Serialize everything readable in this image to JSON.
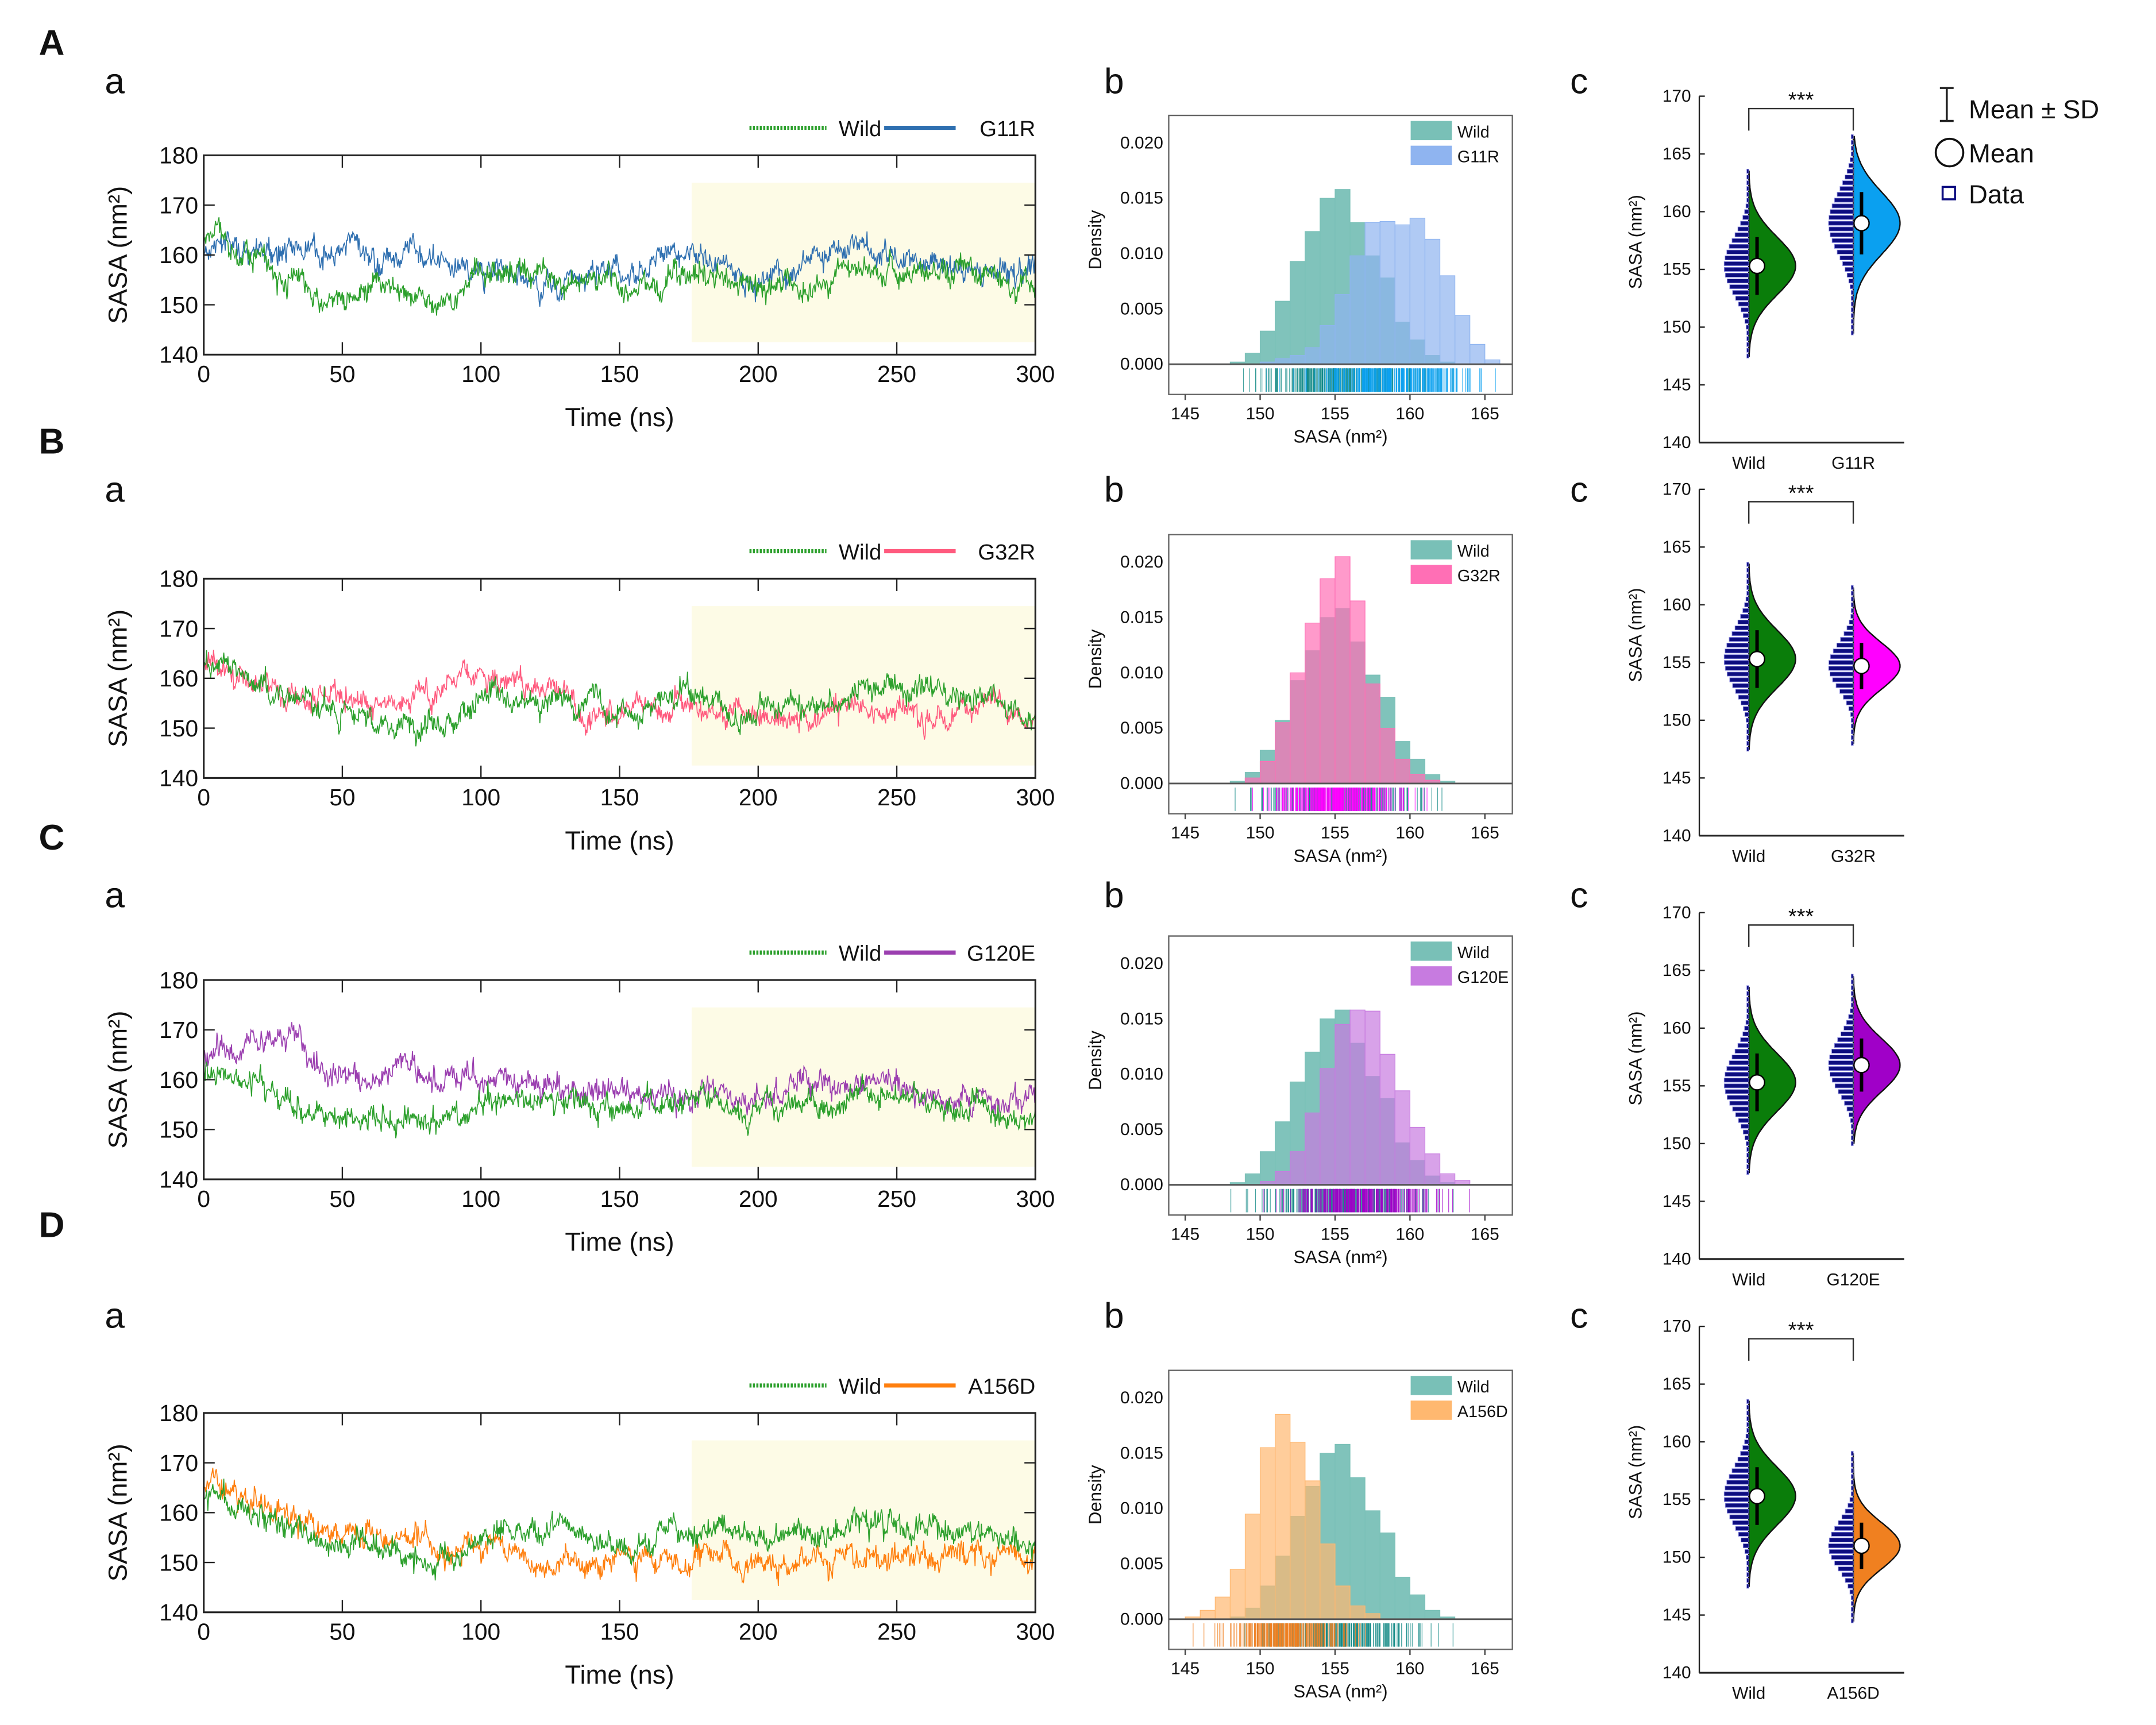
{
  "common": {
    "timeseries": {
      "type": "line",
      "xlabel": "Time (ns)",
      "ylabel": "SASA (nm²)",
      "xlim": [
        0,
        300
      ],
      "ylim": [
        140,
        180
      ],
      "xticks": [
        0,
        50,
        100,
        150,
        200,
        250,
        300
      ],
      "yticks": [
        140,
        150,
        160,
        170,
        180
      ],
      "highlight_region": {
        "x": [
          176,
          300
        ],
        "y": [
          142.5,
          174.5
        ],
        "color": "#fdfbe6"
      },
      "wild_label": "Wild",
      "wild_color": "#2ca02c"
    },
    "histogram": {
      "type": "bar",
      "xlabel": "SASA (nm²)",
      "ylabel": "Density",
      "xlim": [
        144,
        167
      ],
      "ylim": [
        0,
        0.022
      ],
      "xticks": [
        145,
        150,
        155,
        160,
        165
      ],
      "yticks": [
        "0.000",
        "0.005",
        "0.010",
        "0.015",
        "0.020"
      ],
      "wild_label": "Wild",
      "wild_color": "#79c0b7",
      "rug_plot": true
    },
    "violin": {
      "type": "violin",
      "ylabel": "SASA (nm²)",
      "ylim": [
        140,
        170
      ],
      "yticks": [
        140,
        145,
        150,
        155,
        160,
        165,
        170
      ],
      "wild_label": "Wild",
      "wild_color": "#0a7d0a",
      "significance": "***"
    },
    "legend": {
      "sd": "Mean ± SD",
      "mean": "Mean",
      "data": "Data"
    }
  },
  "chart_data": [
    {
      "panel": "A",
      "sub": [
        "a",
        "b",
        "c"
      ],
      "mutant": "G11R",
      "mutant_line_color": "#2e6fb0",
      "mutant_hist_color": "#8fb4f0",
      "mutant_violin_color": "#0aa0f0",
      "timeseries": {
        "wild": [
          [
            0,
            162
          ],
          [
            15,
            161
          ],
          [
            30,
            155
          ],
          [
            45,
            153
          ],
          [
            60,
            154
          ],
          [
            75,
            151
          ],
          [
            90,
            152
          ],
          [
            100,
            157
          ],
          [
            120,
            156
          ],
          [
            140,
            155
          ],
          [
            155,
            152
          ],
          [
            175,
            157
          ],
          [
            200,
            153
          ],
          [
            215,
            155
          ],
          [
            245,
            158
          ],
          [
            270,
            156
          ],
          [
            300,
            153
          ]
        ],
        "mutant": [
          [
            0,
            160
          ],
          [
            20,
            162
          ],
          [
            50,
            160
          ],
          [
            80,
            160
          ],
          [
            100,
            157
          ],
          [
            115,
            155
          ],
          [
            122,
            151
          ],
          [
            130,
            155
          ],
          [
            160,
            158
          ],
          [
            175,
            161
          ],
          [
            195,
            155
          ],
          [
            210,
            156
          ],
          [
            220,
            161
          ],
          [
            260,
            160
          ],
          [
            275,
            156
          ],
          [
            290,
            157
          ],
          [
            300,
            158
          ]
        ]
      },
      "histogram": {
        "bin_width": 1,
        "wild": {
          "148": 0.0002,
          "149": 0.001,
          "150": 0.003,
          "151": 0.0057,
          "152": 0.0093,
          "153": 0.012,
          "154": 0.015,
          "155": 0.0158,
          "156": 0.0128,
          "157": 0.0098,
          "158": 0.0078,
          "159": 0.0038,
          "160": 0.0022,
          "161": 0.0008,
          "162": 0.0002
        },
        "mutant": {
          "150": 0.0002,
          "151": 0.0005,
          "152": 0.0008,
          "153": 0.0015,
          "154": 0.0035,
          "155": 0.0063,
          "156": 0.0098,
          "157": 0.0128,
          "158": 0.0129,
          "159": 0.0126,
          "160": 0.0132,
          "161": 0.0113,
          "162": 0.008,
          "163": 0.0044,
          "164": 0.0018,
          "165": 0.0004
        }
      },
      "violin": {
        "wild": {
          "mean": 155.3,
          "sd": 2.5,
          "min": 147.5,
          "max": 163.5
        },
        "mutant": {
          "mean": 159.0,
          "sd": 2.7,
          "min": 149.5,
          "max": 166.5
        }
      }
    },
    {
      "panel": "B",
      "sub": [
        "a",
        "b",
        "c"
      ],
      "mutant": "G32R",
      "mutant_line_color": "#ff5a7e",
      "mutant_hist_color": "#ff6fb5",
      "mutant_violin_color": "#ff00ff",
      "timeseries": {
        "wild": [
          [
            0,
            162
          ],
          [
            15,
            161
          ],
          [
            30,
            155
          ],
          [
            45,
            153
          ],
          [
            60,
            154
          ],
          [
            75,
            151
          ],
          [
            90,
            152
          ],
          [
            100,
            157
          ],
          [
            120,
            156
          ],
          [
            140,
            155
          ],
          [
            155,
            152
          ],
          [
            175,
            157
          ],
          [
            200,
            153
          ],
          [
            215,
            155
          ],
          [
            245,
            158
          ],
          [
            270,
            156
          ],
          [
            300,
            153
          ]
        ],
        "mutant": [
          [
            0,
            163
          ],
          [
            15,
            162
          ],
          [
            30,
            157
          ],
          [
            60,
            155
          ],
          [
            80,
            157
          ],
          [
            95,
            161
          ],
          [
            110,
            158
          ],
          [
            125,
            160
          ],
          [
            135,
            155
          ],
          [
            150,
            154
          ],
          [
            175,
            155
          ],
          [
            200,
            153
          ],
          [
            300,
            154
          ]
        ]
      },
      "histogram": {
        "bin_width": 1,
        "wild": {
          "148": 0.0002,
          "149": 0.001,
          "150": 0.003,
          "151": 0.0057,
          "152": 0.0093,
          "153": 0.012,
          "154": 0.015,
          "155": 0.0158,
          "156": 0.0128,
          "157": 0.0098,
          "158": 0.0078,
          "159": 0.0038,
          "160": 0.0022,
          "161": 0.0008,
          "162": 0.0002
        },
        "mutant": {
          "149": 0.0005,
          "150": 0.002,
          "151": 0.0055,
          "152": 0.01,
          "153": 0.0145,
          "154": 0.0185,
          "155": 0.0205,
          "156": 0.0165,
          "157": 0.009,
          "158": 0.005,
          "159": 0.0022,
          "160": 0.0008,
          "161": 0.0003
        }
      },
      "violin": {
        "wild": {
          "mean": 155.3,
          "sd": 2.5,
          "min": 147.5,
          "max": 163.5
        },
        "mutant": {
          "mean": 154.7,
          "sd": 2.0,
          "min": 148.0,
          "max": 161.5
        }
      }
    },
    {
      "panel": "C",
      "sub": [
        "a",
        "b",
        "c"
      ],
      "mutant": "G120E",
      "mutant_line_color": "#9b3fb0",
      "mutant_hist_color": "#c77be0",
      "mutant_violin_color": "#a000c8",
      "timeseries": {
        "wild": [
          [
            0,
            162
          ],
          [
            15,
            161
          ],
          [
            30,
            155
          ],
          [
            45,
            153
          ],
          [
            60,
            154
          ],
          [
            75,
            151
          ],
          [
            90,
            152
          ],
          [
            100,
            157
          ],
          [
            120,
            156
          ],
          [
            140,
            155
          ],
          [
            155,
            152
          ],
          [
            175,
            157
          ],
          [
            200,
            153
          ],
          [
            215,
            155
          ],
          [
            245,
            158
          ],
          [
            270,
            156
          ],
          [
            300,
            153
          ]
        ],
        "mutant": [
          [
            0,
            166
          ],
          [
            20,
            168
          ],
          [
            35,
            170
          ],
          [
            40,
            162
          ],
          [
            70,
            161
          ],
          [
            90,
            160
          ],
          [
            100,
            163
          ],
          [
            110,
            160
          ],
          [
            140,
            158
          ],
          [
            175,
            157
          ],
          [
            200,
            156
          ],
          [
            240,
            160
          ],
          [
            270,
            157
          ],
          [
            300,
            155
          ]
        ]
      },
      "histogram": {
        "bin_width": 1,
        "wild": {
          "148": 0.0002,
          "149": 0.001,
          "150": 0.003,
          "151": 0.0057,
          "152": 0.0093,
          "153": 0.012,
          "154": 0.015,
          "155": 0.0158,
          "156": 0.0128,
          "157": 0.0098,
          "158": 0.0078,
          "159": 0.0038,
          "160": 0.0022,
          "161": 0.0008,
          "162": 0.0002
        },
        "mutant": {
          "150": 0.0003,
          "151": 0.0012,
          "152": 0.003,
          "153": 0.0065,
          "154": 0.0105,
          "155": 0.0145,
          "156": 0.0158,
          "157": 0.0157,
          "158": 0.0118,
          "159": 0.0085,
          "160": 0.0052,
          "161": 0.0028,
          "162": 0.001,
          "163": 0.0004
        }
      },
      "violin": {
        "wild": {
          "mean": 155.3,
          "sd": 2.5,
          "min": 147.5,
          "max": 163.5
        },
        "mutant": {
          "mean": 156.8,
          "sd": 2.3,
          "min": 150.0,
          "max": 164.5
        }
      }
    },
    {
      "panel": "D",
      "sub": [
        "a",
        "b",
        "c"
      ],
      "mutant": "A156D",
      "mutant_line_color": "#ff7f0e",
      "mutant_hist_color": "#ffb870",
      "mutant_violin_color": "#f08020",
      "timeseries": {
        "wild": [
          [
            0,
            164
          ],
          [
            15,
            161
          ],
          [
            30,
            156
          ],
          [
            45,
            153
          ],
          [
            60,
            154
          ],
          [
            75,
            151
          ],
          [
            90,
            152
          ],
          [
            100,
            156
          ],
          [
            120,
            157
          ],
          [
            140,
            155
          ],
          [
            155,
            153
          ],
          [
            175,
            157
          ],
          [
            200,
            155
          ],
          [
            215,
            156
          ],
          [
            245,
            158
          ],
          [
            270,
            156
          ],
          [
            300,
            153
          ]
        ],
        "mutant": [
          [
            0,
            166
          ],
          [
            30,
            158
          ],
          [
            60,
            155
          ],
          [
            80,
            155
          ],
          [
            100,
            153
          ],
          [
            120,
            150
          ],
          [
            140,
            149
          ],
          [
            160,
            151
          ],
          [
            180,
            152
          ],
          [
            200,
            150
          ],
          [
            300,
            151
          ]
        ]
      },
      "histogram": {
        "bin_width": 1,
        "wild": {
          "148": 0.0002,
          "149": 0.001,
          "150": 0.003,
          "151": 0.0057,
          "152": 0.0093,
          "153": 0.012,
          "154": 0.015,
          "155": 0.0158,
          "156": 0.0128,
          "157": 0.0098,
          "158": 0.0078,
          "159": 0.0038,
          "160": 0.0022,
          "161": 0.0008,
          "162": 0.0002
        },
        "mutant": {
          "145": 0.0002,
          "146": 0.0008,
          "147": 0.002,
          "148": 0.0045,
          "149": 0.0095,
          "150": 0.0155,
          "151": 0.0185,
          "152": 0.016,
          "153": 0.0125,
          "154": 0.0068,
          "155": 0.003,
          "156": 0.0012,
          "157": 0.0005
        }
      },
      "violin": {
        "wild": {
          "mean": 155.3,
          "sd": 2.5,
          "min": 147.5,
          "max": 163.5
        },
        "mutant": {
          "mean": 151.0,
          "sd": 2.0,
          "min": 144.5,
          "max": 159.0
        }
      }
    }
  ]
}
